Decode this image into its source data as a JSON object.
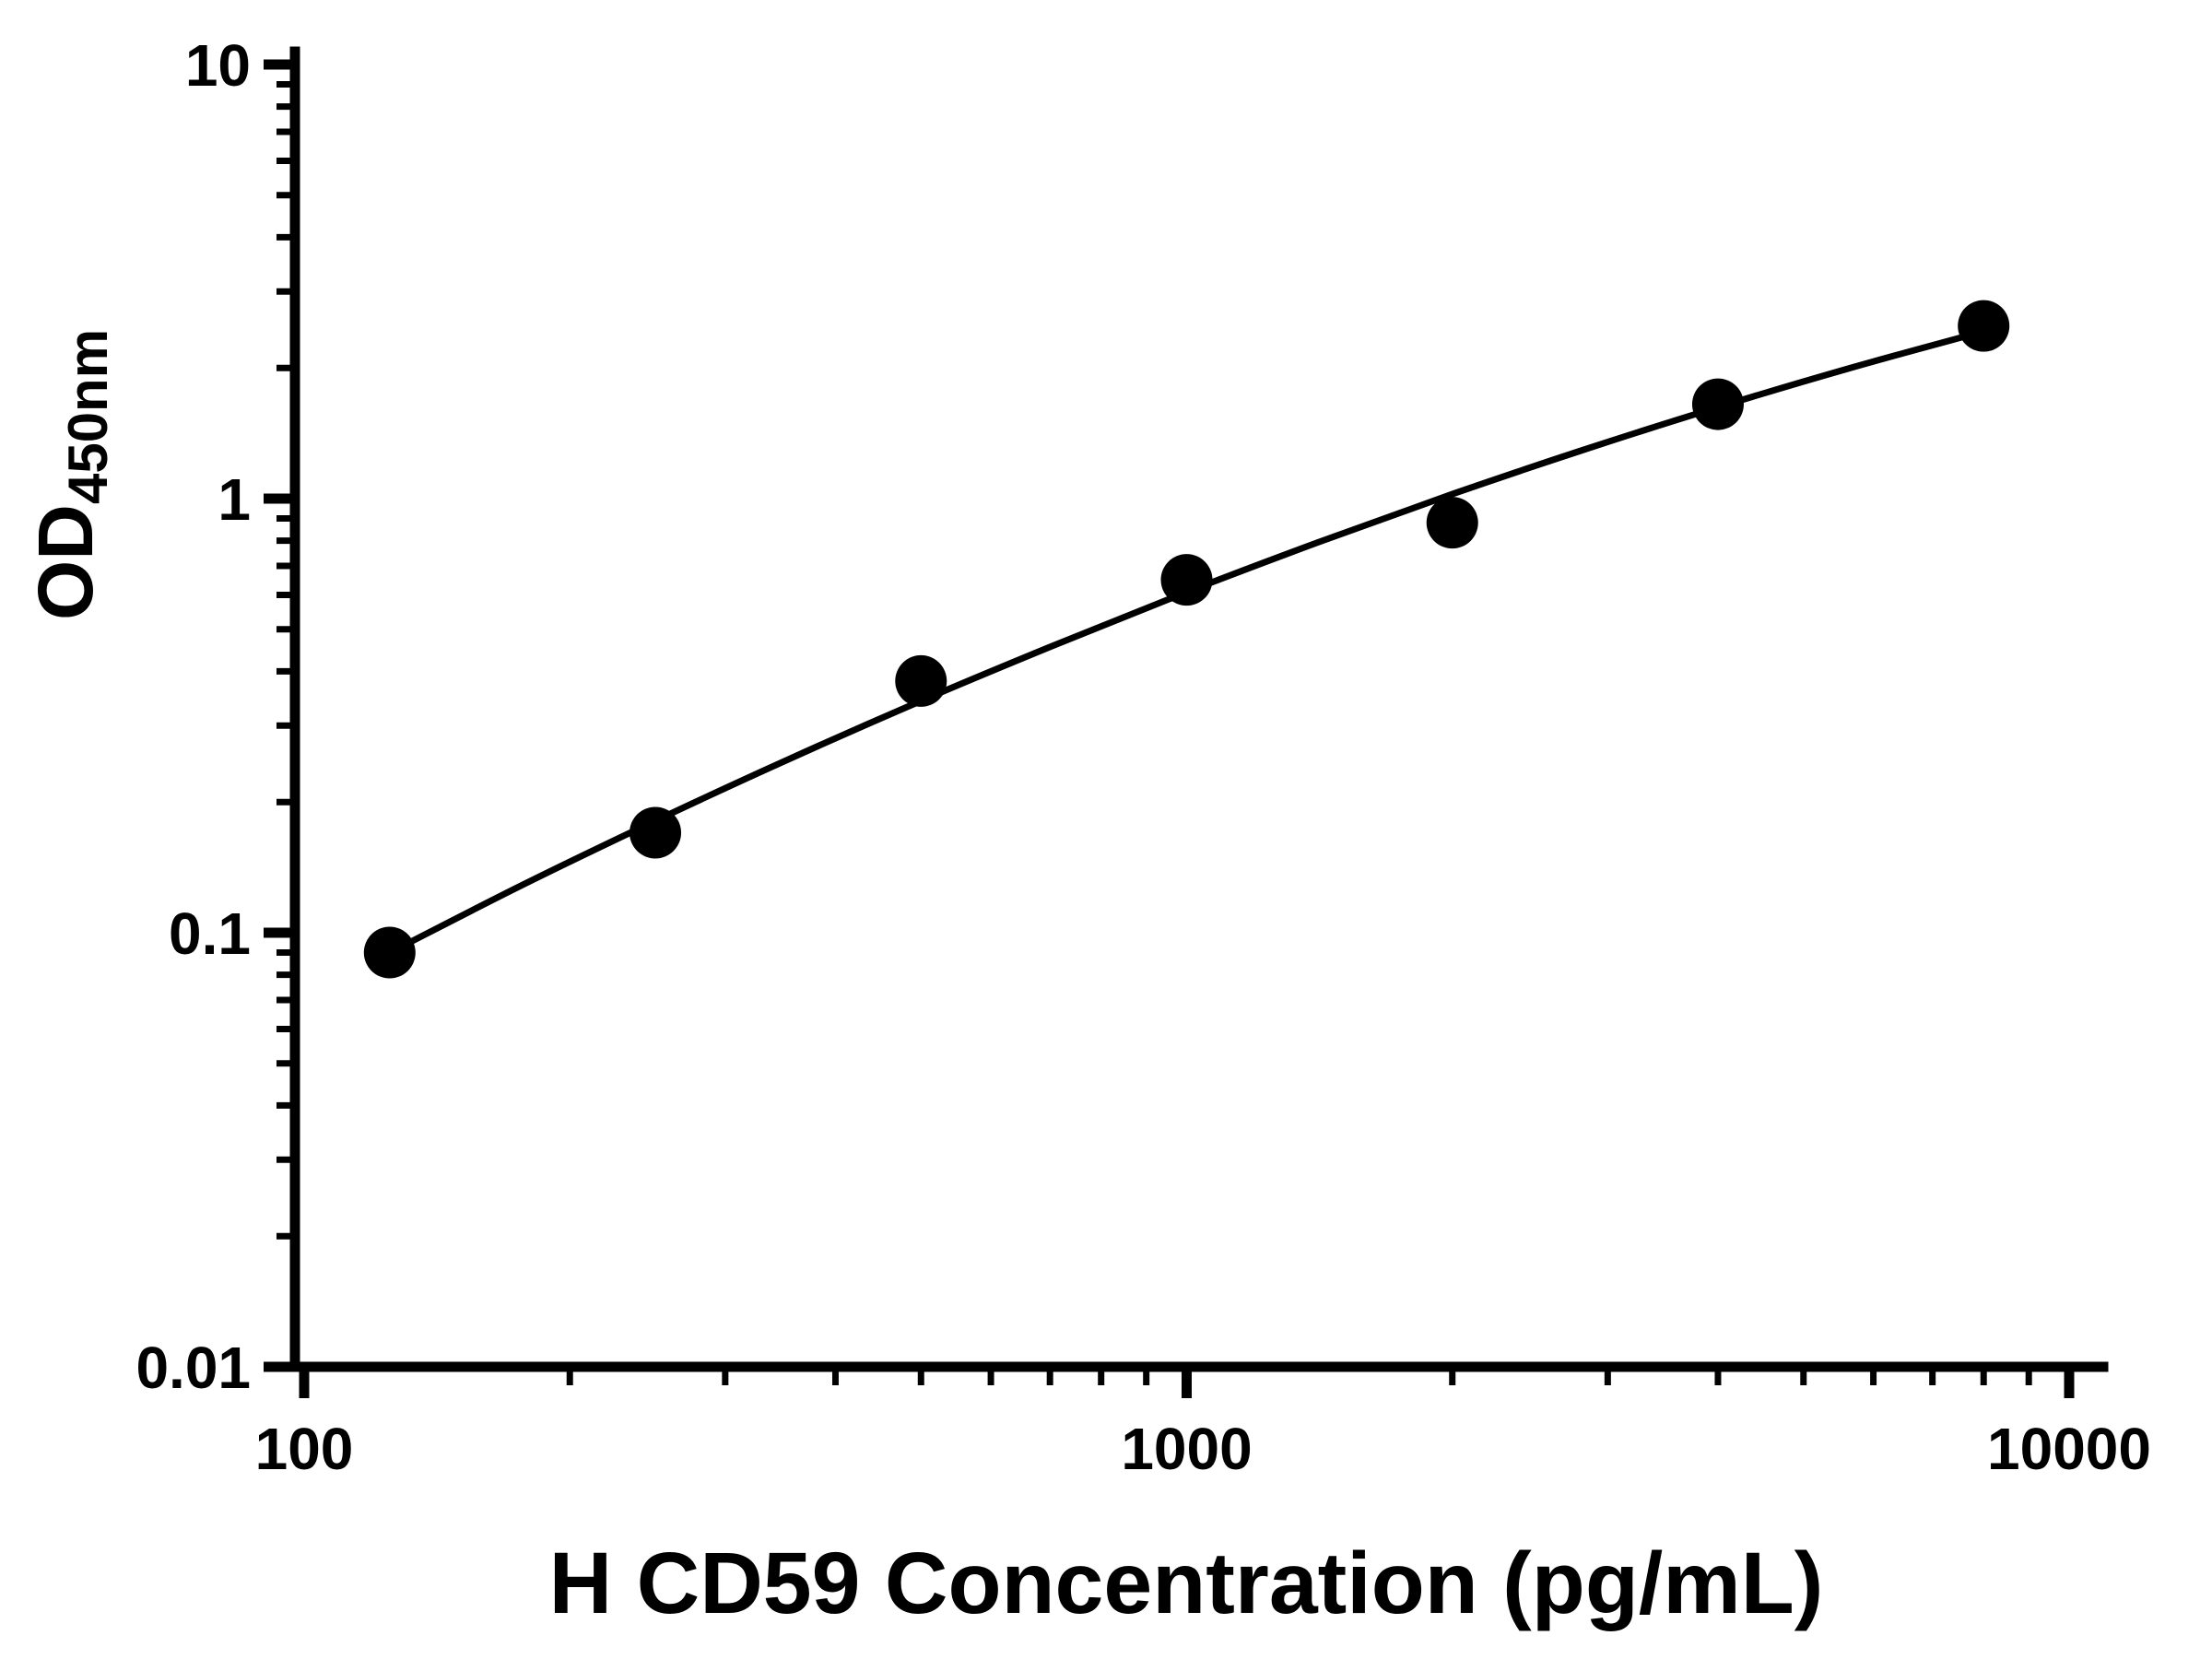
{
  "chart_data": {
    "type": "scatter",
    "title": "",
    "xlabel": "H CD59 Concentration (pg/mL)",
    "ylabel_main": "OD",
    "ylabel_sub": "450nm",
    "x_scale": "log10",
    "y_scale": "log10",
    "xlim": [
      100,
      10000
    ],
    "ylim": [
      0.01,
      10
    ],
    "grid": false,
    "legend": "none",
    "marker_color": "#000000",
    "line_color": "#000000",
    "background_color": "#ffffff",
    "x_ticks": [
      {
        "value": 100,
        "label": "100"
      },
      {
        "value": 1000,
        "label": "1000"
      },
      {
        "value": 10000,
        "label": "10000"
      }
    ],
    "y_ticks": [
      {
        "value": 10,
        "label": "10"
      },
      {
        "value": 1,
        "label": "1"
      },
      {
        "value": 0.1,
        "label": "0.1"
      },
      {
        "value": 0.01,
        "label": "0.01"
      }
    ],
    "points": {
      "x_pg_ml": [
        125,
        250,
        500,
        1000,
        2000,
        4000,
        8000
      ],
      "od450": [
        0.09,
        0.17,
        0.38,
        0.65,
        0.88,
        1.65,
        2.5
      ]
    },
    "fit_curve": {
      "x": [
        125,
        177,
        250,
        354,
        500,
        707,
        1000,
        1414,
        2000,
        2828,
        4000,
        5657,
        8000
      ],
      "y": [
        0.09,
        0.129,
        0.181,
        0.251,
        0.342,
        0.459,
        0.609,
        0.795,
        1.024,
        1.299,
        1.624,
        2.001,
        2.429
      ]
    }
  }
}
